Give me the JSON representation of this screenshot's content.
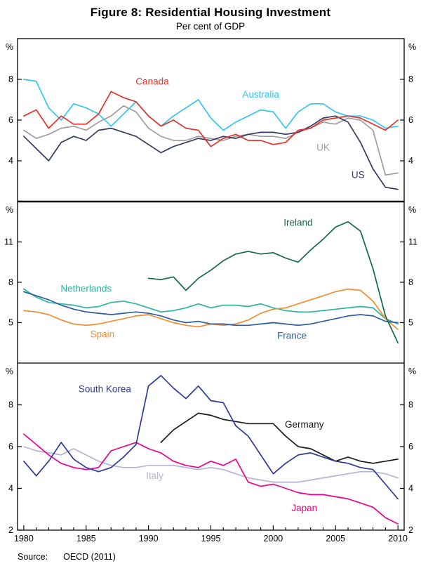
{
  "header": {
    "title": "Figure 8: Residential Housing Investment",
    "subtitle": "Per cent of GDP"
  },
  "footer": {
    "source_label": "Source:",
    "source_value": "OECD (2011)"
  },
  "chart_data": {
    "type": "line",
    "title": "Figure 8: Residential Housing Investment",
    "subtitle": "Per cent of GDP",
    "unit": "%",
    "grid": false,
    "legend_position": "inline-annotations",
    "x_range": [
      1979.5,
      2010.5
    ],
    "years": [
      1980,
      1981,
      1982,
      1983,
      1984,
      1985,
      1986,
      1987,
      1988,
      1989,
      1990,
      1991,
      1992,
      1993,
      1994,
      1995,
      1996,
      1997,
      1998,
      1999,
      2000,
      2001,
      2002,
      2003,
      2004,
      2005,
      2006,
      2007,
      2008,
      2009,
      2010
    ],
    "x_tick_labels": [
      "1980",
      "1985",
      "1990",
      "1995",
      "2000",
      "2005",
      "2010"
    ],
    "panels": [
      {
        "position": "top",
        "ylim": [
          2,
          10
        ],
        "yticks": [
          4,
          6,
          8
        ],
        "series": [
          {
            "name": "UK",
            "color": "#9e9e9e",
            "label_at": {
              "x": 2004,
              "y": 4.5
            },
            "values": [
              5.5,
              5.1,
              5.3,
              5.6,
              5.7,
              5.5,
              5.9,
              6.2,
              6.7,
              6.4,
              5.6,
              5.2,
              5.0,
              5.0,
              5.2,
              5.1,
              5.0,
              5.2,
              5.3,
              5.2,
              5.2,
              5.1,
              5.4,
              5.6,
              5.9,
              5.8,
              6.1,
              6.0,
              5.5,
              3.3,
              3.4
            ]
          },
          {
            "name": "Australia",
            "color": "#33c6f0",
            "label_at": {
              "x": 1999,
              "y": 7.1
            },
            "values": [
              8.0,
              7.9,
              6.6,
              6.0,
              6.8,
              6.6,
              6.3,
              5.7,
              6.3,
              6.9,
              6.2,
              5.7,
              6.2,
              6.6,
              7.0,
              6.1,
              5.5,
              5.9,
              6.2,
              6.5,
              6.4,
              5.6,
              6.4,
              6.8,
              6.8,
              6.4,
              6.2,
              6.2,
              6.0,
              5.6,
              5.7
            ]
          },
          {
            "name": "US",
            "color": "#343a63",
            "label_at": {
              "x": 2006.8,
              "y": 3.15
            },
            "values": [
              5.2,
              4.6,
              4.0,
              4.9,
              5.2,
              5.0,
              5.5,
              5.6,
              5.4,
              5.2,
              4.8,
              4.4,
              4.7,
              4.9,
              5.1,
              5.0,
              5.2,
              5.1,
              5.3,
              5.4,
              5.4,
              5.3,
              5.4,
              5.7,
              6.1,
              6.2,
              5.9,
              4.9,
              3.6,
              2.7,
              2.6
            ]
          },
          {
            "name": "Canada",
            "color": "#e63329",
            "label_at": {
              "x": 1990.3,
              "y": 7.75
            },
            "values": [
              6.2,
              6.5,
              5.6,
              6.2,
              5.8,
              5.8,
              6.3,
              7.4,
              7.1,
              6.9,
              6.2,
              5.7,
              6.0,
              5.6,
              5.5,
              4.7,
              5.1,
              5.3,
              5.0,
              5.0,
              4.8,
              4.9,
              5.5,
              5.6,
              6.0,
              6.1,
              6.2,
              6.1,
              5.8,
              5.5,
              6.0
            ]
          }
        ]
      },
      {
        "position": "middle",
        "ylim": [
          2,
          14
        ],
        "yticks": [
          5,
          8,
          11
        ],
        "series": [
          {
            "name": "Netherlands",
            "color": "#2ab5a0",
            "label_at": {
              "x": 1985,
              "y": 7.3
            },
            "values": [
              7.5,
              6.9,
              6.5,
              6.4,
              6.3,
              6.1,
              6.2,
              6.5,
              6.6,
              6.4,
              6.1,
              5.8,
              5.9,
              6.1,
              6.4,
              6.1,
              6.3,
              6.3,
              6.2,
              6.4,
              6.1,
              5.9,
              5.8,
              5.8,
              5.9,
              6.0,
              6.1,
              6.2,
              6.1,
              5.3,
              4.9
            ]
          },
          {
            "name": "Spain",
            "color": "#f28c33",
            "label_at": {
              "x": 1986.3,
              "y": 3.9
            },
            "values": [
              5.9,
              5.8,
              5.6,
              5.2,
              4.9,
              4.8,
              4.9,
              5.1,
              5.3,
              5.5,
              5.6,
              5.3,
              5.0,
              4.8,
              4.7,
              4.9,
              4.8,
              4.9,
              5.2,
              5.7,
              6.0,
              6.1,
              6.4,
              6.7,
              7.0,
              7.3,
              7.5,
              7.4,
              6.6,
              5.3,
              4.5
            ]
          },
          {
            "name": "France",
            "color": "#2f5e9e",
            "label_at": {
              "x": 2001.5,
              "y": 3.8
            },
            "values": [
              7.3,
              7.0,
              6.7,
              6.3,
              6.0,
              5.8,
              5.7,
              5.6,
              5.7,
              5.8,
              5.7,
              5.5,
              5.2,
              5.0,
              5.1,
              4.9,
              4.9,
              4.8,
              4.8,
              4.9,
              5.0,
              4.9,
              4.8,
              4.9,
              5.1,
              5.3,
              5.5,
              5.6,
              5.5,
              5.1,
              5.0
            ]
          },
          {
            "name": "Ireland",
            "color": "#13684a",
            "label_at": {
              "x": 2002,
              "y": 12.2
            },
            "values": [
              null,
              null,
              null,
              null,
              null,
              null,
              null,
              null,
              null,
              null,
              8.3,
              8.2,
              8.4,
              7.4,
              8.3,
              8.9,
              9.6,
              10.1,
              10.3,
              10.1,
              10.2,
              9.8,
              9.5,
              10.4,
              11.2,
              12.1,
              12.5,
              11.8,
              9.0,
              5.5,
              3.5
            ]
          }
        ]
      },
      {
        "position": "bottom",
        "ylim": [
          2,
          10
        ],
        "yticks": [
          2,
          4,
          6,
          8
        ],
        "series": [
          {
            "name": "Italy",
            "color": "#b5b3d8",
            "label_at": {
              "x": 1990.5,
              "y": 4.45
            },
            "values": [
              6.0,
              5.8,
              5.7,
              5.6,
              5.9,
              5.6,
              5.3,
              5.1,
              5.0,
              5.0,
              5.1,
              5.1,
              5.1,
              5.0,
              4.9,
              5.0,
              4.9,
              4.7,
              4.5,
              4.4,
              4.3,
              4.3,
              4.3,
              4.4,
              4.5,
              4.6,
              4.7,
              4.8,
              4.8,
              4.7,
              4.5
            ]
          },
          {
            "name": "Japan",
            "color": "#ec008c",
            "label_at": {
              "x": 2002.5,
              "y": 2.9
            },
            "values": [
              6.6,
              6.1,
              5.6,
              5.2,
              5.0,
              4.9,
              5.0,
              5.8,
              6.0,
              6.2,
              5.9,
              5.7,
              5.3,
              5.1,
              5.0,
              5.3,
              5.1,
              5.4,
              4.3,
              4.1,
              4.2,
              4.0,
              3.8,
              3.7,
              3.7,
              3.6,
              3.5,
              3.3,
              3.1,
              2.6,
              2.3
            ]
          },
          {
            "name": "Germany",
            "color": "#1a1a1a",
            "label_at": {
              "x": 2002.5,
              "y": 6.9
            },
            "values": [
              null,
              null,
              null,
              null,
              null,
              null,
              null,
              null,
              null,
              null,
              null,
              6.2,
              6.8,
              7.2,
              7.6,
              7.5,
              7.3,
              7.2,
              7.1,
              7.1,
              7.1,
              6.5,
              6.0,
              5.9,
              5.6,
              5.3,
              5.5,
              5.3,
              5.2,
              5.3,
              5.4
            ]
          },
          {
            "name": "South Korea",
            "color": "#2f3a97",
            "label_at": {
              "x": 1986.5,
              "y": 8.6
            },
            "values": [
              5.3,
              4.6,
              5.3,
              6.2,
              5.4,
              5.0,
              4.8,
              5.0,
              5.5,
              6.1,
              8.9,
              9.4,
              8.8,
              8.3,
              8.9,
              8.2,
              8.1,
              7.0,
              6.5,
              5.6,
              4.7,
              5.2,
              5.6,
              5.7,
              5.5,
              5.3,
              5.2,
              5.0,
              4.9,
              4.2,
              3.5
            ]
          }
        ]
      }
    ]
  }
}
